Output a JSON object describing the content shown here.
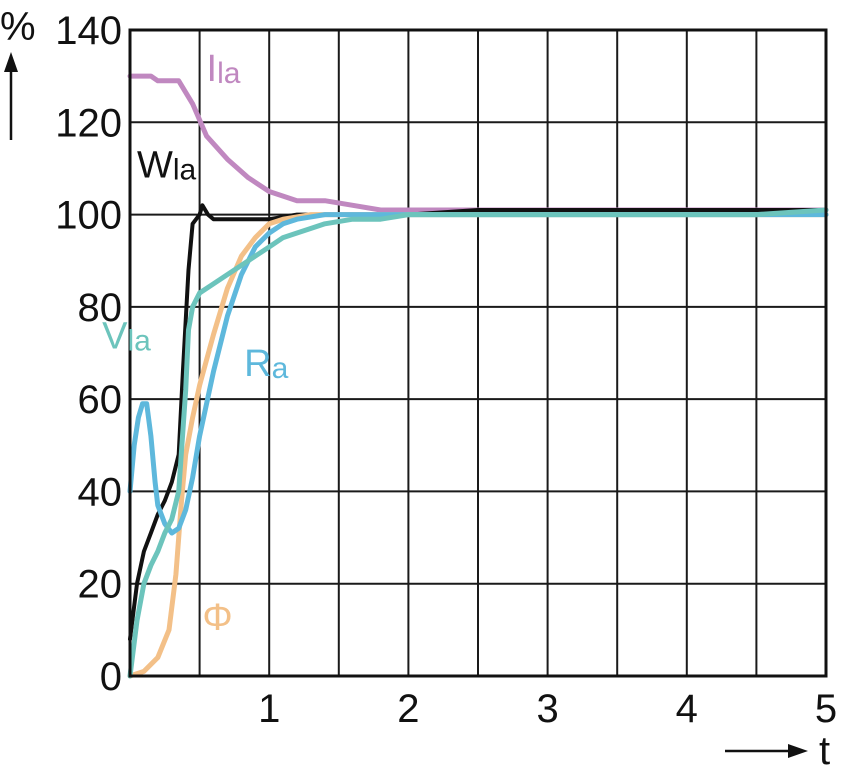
{
  "chart_data": {
    "type": "line",
    "xlabel": "t",
    "ylabel": "%",
    "xlim": [
      0,
      5
    ],
    "ylim": [
      0,
      140
    ],
    "x_ticks": [
      "1",
      "2",
      "3",
      "4",
      "5"
    ],
    "y_ticks": [
      "0",
      "20",
      "40",
      "60",
      "80",
      "100",
      "120",
      "140"
    ],
    "x_grid_step": 0.5,
    "y_grid_step": 20,
    "grid": true,
    "series": [
      {
        "name": "Ila",
        "color": "#c088c0",
        "points": [
          [
            0,
            130
          ],
          [
            0.15,
            130
          ],
          [
            0.2,
            129
          ],
          [
            0.35,
            129
          ],
          [
            0.45,
            124
          ],
          [
            0.55,
            117
          ],
          [
            0.7,
            112
          ],
          [
            0.85,
            108
          ],
          [
            1.0,
            105
          ],
          [
            1.2,
            103
          ],
          [
            1.4,
            103
          ],
          [
            1.6,
            102
          ],
          [
            1.8,
            101
          ],
          [
            2.0,
            101
          ],
          [
            2.5,
            101
          ],
          [
            3.0,
            101
          ],
          [
            3.5,
            101
          ],
          [
            4.0,
            101
          ],
          [
            4.5,
            101
          ],
          [
            5.0,
            101
          ]
        ]
      },
      {
        "name": "Wla",
        "color": "#111111",
        "points": [
          [
            0,
            8
          ],
          [
            0.05,
            20
          ],
          [
            0.1,
            27
          ],
          [
            0.15,
            31
          ],
          [
            0.2,
            35
          ],
          [
            0.25,
            38
          ],
          [
            0.3,
            42
          ],
          [
            0.35,
            48
          ],
          [
            0.38,
            66
          ],
          [
            0.42,
            88
          ],
          [
            0.45,
            98
          ],
          [
            0.5,
            100
          ],
          [
            0.52,
            102
          ],
          [
            0.56,
            100
          ],
          [
            0.6,
            99
          ],
          [
            0.7,
            99
          ],
          [
            0.8,
            99
          ],
          [
            0.9,
            99
          ],
          [
            1.0,
            99
          ],
          [
            1.2,
            100
          ],
          [
            1.5,
            100
          ],
          [
            2.0,
            100
          ],
          [
            2.5,
            101
          ],
          [
            3.0,
            101
          ],
          [
            3.5,
            101
          ],
          [
            4.0,
            101
          ],
          [
            4.5,
            101
          ],
          [
            5.0,
            101
          ]
        ]
      },
      {
        "name": "Φ",
        "color": "#f3c088",
        "points": [
          [
            0,
            0
          ],
          [
            0.1,
            1
          ],
          [
            0.2,
            4
          ],
          [
            0.28,
            10
          ],
          [
            0.33,
            22
          ],
          [
            0.37,
            38
          ],
          [
            0.4,
            48
          ],
          [
            0.45,
            56
          ],
          [
            0.5,
            63
          ],
          [
            0.6,
            74
          ],
          [
            0.7,
            84
          ],
          [
            0.8,
            91
          ],
          [
            0.9,
            95
          ],
          [
            1.0,
            98
          ],
          [
            1.1,
            99
          ],
          [
            1.3,
            100
          ],
          [
            1.5,
            100
          ],
          [
            2.0,
            100
          ],
          [
            3.0,
            100
          ],
          [
            5.0,
            100
          ]
        ]
      },
      {
        "name": "Ra",
        "color": "#5eb8dc",
        "points": [
          [
            0,
            40
          ],
          [
            0.03,
            50
          ],
          [
            0.06,
            56
          ],
          [
            0.09,
            59
          ],
          [
            0.12,
            59
          ],
          [
            0.15,
            52
          ],
          [
            0.18,
            42
          ],
          [
            0.2,
            37
          ],
          [
            0.25,
            33
          ],
          [
            0.3,
            31
          ],
          [
            0.35,
            32
          ],
          [
            0.4,
            36
          ],
          [
            0.45,
            43
          ],
          [
            0.5,
            52
          ],
          [
            0.6,
            66
          ],
          [
            0.7,
            78
          ],
          [
            0.8,
            87
          ],
          [
            0.9,
            93
          ],
          [
            1.0,
            96
          ],
          [
            1.1,
            98
          ],
          [
            1.2,
            99
          ],
          [
            1.4,
            100
          ],
          [
            1.6,
            100
          ],
          [
            2.0,
            100
          ],
          [
            3.0,
            100
          ],
          [
            4.0,
            100
          ],
          [
            5.0,
            100
          ]
        ]
      },
      {
        "name": "Vla",
        "color": "#6cc4bc",
        "points": [
          [
            0,
            0
          ],
          [
            0.05,
            12
          ],
          [
            0.1,
            20
          ],
          [
            0.15,
            24
          ],
          [
            0.2,
            27
          ],
          [
            0.25,
            31
          ],
          [
            0.3,
            34
          ],
          [
            0.35,
            40
          ],
          [
            0.4,
            62
          ],
          [
            0.42,
            75
          ],
          [
            0.45,
            80
          ],
          [
            0.5,
            83
          ],
          [
            0.6,
            85
          ],
          [
            0.7,
            87
          ],
          [
            0.8,
            89
          ],
          [
            0.9,
            91
          ],
          [
            1.0,
            93
          ],
          [
            1.1,
            95
          ],
          [
            1.2,
            96
          ],
          [
            1.3,
            97
          ],
          [
            1.4,
            98
          ],
          [
            1.6,
            99
          ],
          [
            1.8,
            99
          ],
          [
            2.0,
            100
          ],
          [
            2.5,
            100
          ],
          [
            3.0,
            100
          ],
          [
            3.5,
            100
          ],
          [
            4.0,
            100
          ],
          [
            4.5,
            100
          ],
          [
            5.0,
            101
          ]
        ]
      }
    ],
    "labels": [
      {
        "text": "I",
        "sub": "la",
        "series": "Ila",
        "x": 0.55,
        "y": 129
      },
      {
        "text": "W",
        "sub": "la",
        "series": "Wla",
        "x": 0.05,
        "y": 108
      },
      {
        "text": "V",
        "sub": "la",
        "series": "Vla",
        "x": -0.2,
        "y": 71
      },
      {
        "text": "R",
        "sub": "a",
        "series": "Ra",
        "x": 0.82,
        "y": 65
      },
      {
        "text": "Φ",
        "sub": "",
        "series": "Φ",
        "x": 0.52,
        "y": 10
      }
    ]
  }
}
